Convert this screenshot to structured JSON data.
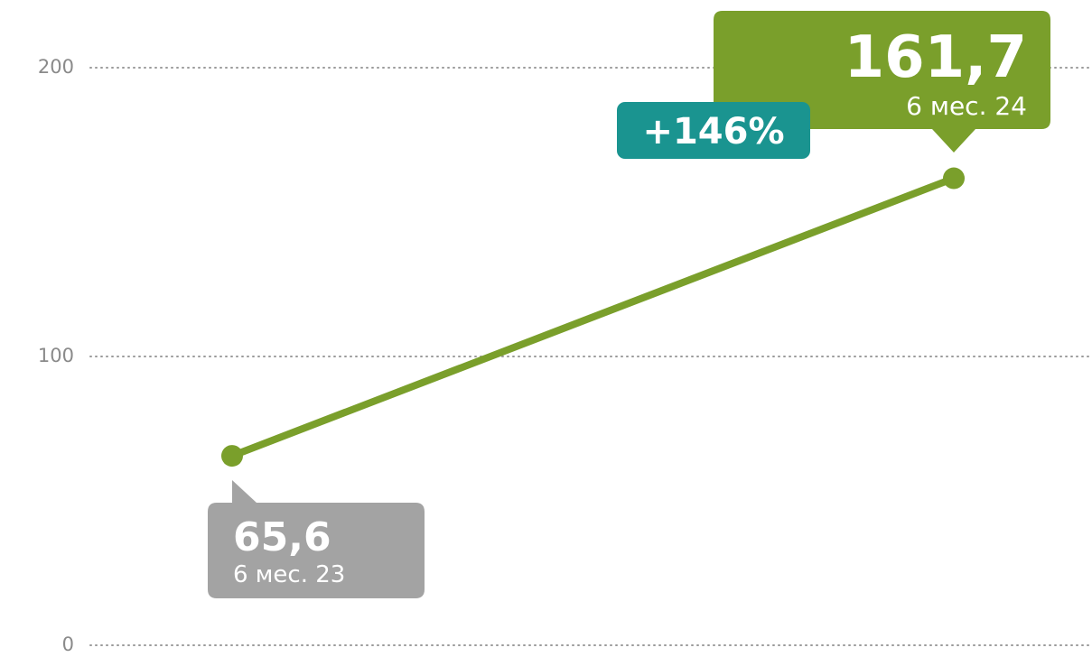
{
  "chart_data": {
    "type": "line",
    "categories": [
      "6 мес. 23",
      "6 мес. 24"
    ],
    "series": [
      {
        "name": null,
        "color": "#7a9f2b",
        "values": [
          65.6,
          161.7
        ],
        "value_labels": [
          "65,6",
          "161,7"
        ]
      }
    ],
    "annotation": "+146%",
    "ylim": [
      0,
      200
    ],
    "yticks": [
      0,
      100,
      200
    ],
    "grid": true
  }
}
